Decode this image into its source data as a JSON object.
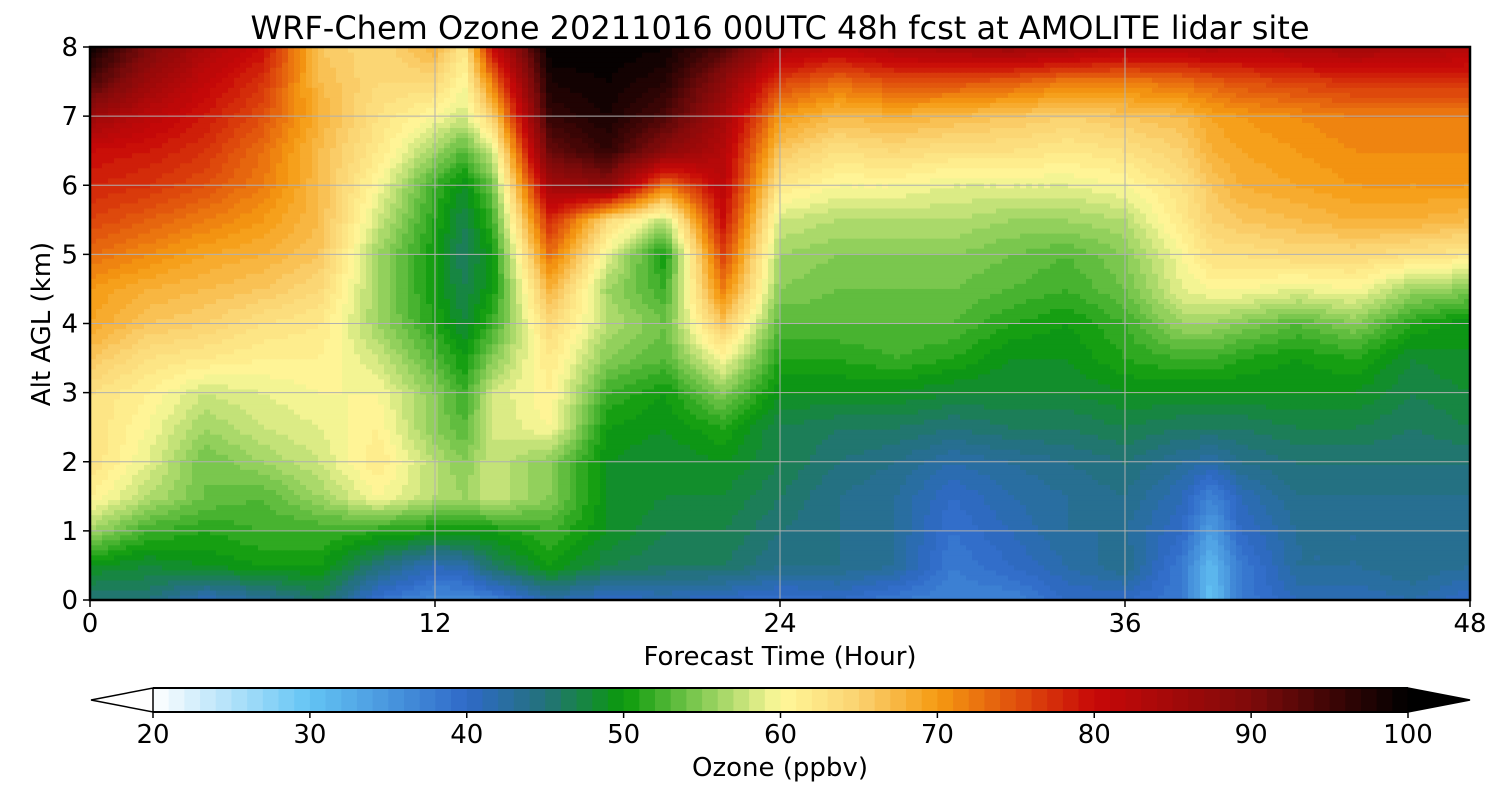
{
  "chart_data": {
    "type": "heatmap",
    "title": "WRF-Chem Ozone  20211016 00UTC 48h fcst at AMOLITE lidar site",
    "xlabel": "Forecast Time (Hour)",
    "ylabel": "Alt AGL (km)",
    "xlim": [
      0,
      48
    ],
    "ylim": [
      0,
      8
    ],
    "x_ticks": [
      0,
      12,
      24,
      36,
      48
    ],
    "y_ticks": [
      0,
      1,
      2,
      3,
      4,
      5,
      6,
      7,
      8
    ],
    "grid": true,
    "x": [
      0,
      2,
      4,
      6,
      8,
      10,
      12,
      13,
      14,
      16,
      18,
      20,
      22,
      24,
      26,
      28,
      30,
      32,
      34,
      36,
      38,
      39,
      40,
      42,
      44,
      46,
      48
    ],
    "y": [
      0,
      0.5,
      1,
      1.5,
      2,
      2.5,
      3,
      3.5,
      4,
      4.5,
      5,
      5.5,
      6,
      6.5,
      7,
      7.5,
      8
    ],
    "z_rows_by_altitude": [
      [
        45,
        45,
        41,
        43,
        46,
        39,
        36,
        36,
        37,
        42,
        40,
        41,
        40,
        39,
        40,
        38,
        37,
        37,
        40,
        40,
        38,
        30,
        38,
        41,
        41,
        42,
        40
      ],
      [
        49,
        48,
        49,
        50,
        50,
        45,
        41,
        42,
        46,
        50,
        47,
        46,
        46,
        44,
        44,
        43,
        38,
        40,
        42,
        44,
        38,
        31,
        38,
        43,
        43,
        44,
        43
      ],
      [
        56,
        52,
        51,
        52,
        52,
        51,
        50,
        50,
        50,
        52,
        49,
        47,
        47,
        45,
        44,
        43,
        39,
        41,
        43,
        43,
        40,
        34,
        40,
        43,
        43,
        44,
        43
      ],
      [
        61,
        57,
        54,
        53,
        56,
        60,
        57,
        56,
        58,
        55,
        49,
        48,
        48,
        46,
        44,
        43,
        40,
        42,
        43,
        44,
        41,
        37,
        41,
        44,
        44,
        44,
        44
      ],
      [
        63,
        59,
        54,
        56,
        58,
        62,
        57,
        55,
        58,
        55,
        49,
        48,
        49,
        47,
        45,
        44,
        42,
        43,
        44,
        45,
        43,
        42,
        44,
        45,
        45,
        45,
        45
      ],
      [
        63,
        60,
        56,
        58,
        59,
        61,
        55,
        53,
        58,
        60,
        50,
        49,
        51,
        47,
        46,
        46,
        45,
        46,
        46,
        47,
        46,
        46,
        46,
        47,
        47,
        46,
        47
      ],
      [
        63,
        61,
        58,
        59,
        60,
        60,
        55,
        52,
        58,
        61,
        52,
        50,
        55,
        49,
        49,
        49,
        48,
        48,
        48,
        49,
        49,
        49,
        49,
        49,
        49,
        47,
        48
      ],
      [
        66,
        63,
        62,
        61,
        61,
        58,
        53,
        50,
        55,
        62,
        55,
        53,
        60,
        51,
        51,
        52,
        51,
        49,
        49,
        51,
        52,
        52,
        51,
        50,
        51,
        48,
        49
      ],
      [
        69,
        66,
        65,
        63,
        62,
        56,
        51,
        48,
        52,
        64,
        57,
        54,
        66,
        53,
        53,
        53,
        53,
        51,
        50,
        52,
        56,
        56,
        55,
        53,
        55,
        51,
        49
      ],
      [
        70,
        68,
        67,
        66,
        64,
        56,
        50,
        47,
        50,
        68,
        56,
        52,
        72,
        55,
        54,
        54,
        54,
        53,
        52,
        54,
        59,
        60,
        60,
        59,
        60,
        56,
        55
      ],
      [
        73,
        71,
        69,
        68,
        66,
        56,
        50,
        46,
        50,
        73,
        59,
        50,
        76,
        56,
        55,
        55,
        55,
        54,
        53,
        55,
        60,
        63,
        63,
        64,
        64,
        63,
        62
      ],
      [
        76,
        74,
        72,
        70,
        67,
        58,
        51,
        47,
        52,
        78,
        64,
        57,
        80,
        58,
        57,
        57,
        57,
        56,
        56,
        57,
        62,
        65,
        66,
        67,
        68,
        68,
        67
      ],
      [
        78,
        77,
        75,
        72,
        67,
        60,
        52,
        49,
        54,
        85,
        88,
        72,
        82,
        62,
        60,
        60,
        59,
        59,
        59,
        60,
        63,
        66,
        68,
        69,
        70,
        70,
        70
      ],
      [
        80,
        79,
        77,
        73,
        67,
        62,
        56,
        53,
        58,
        92,
        96,
        88,
        83,
        66,
        63,
        64,
        63,
        63,
        62,
        63,
        65,
        68,
        69,
        70,
        71,
        71,
        71
      ],
      [
        86,
        82,
        79,
        75,
        68,
        63,
        60,
        58,
        65,
        96,
        98,
        94,
        85,
        70,
        67,
        68,
        67,
        66,
        65,
        66,
        67,
        69,
        70,
        71,
        72,
        72,
        72
      ],
      [
        94,
        86,
        81,
        77,
        67,
        64,
        64,
        60,
        72,
        98,
        99,
        97,
        88,
        76,
        73,
        75,
        75,
        74,
        72,
        72,
        73,
        74,
        75,
        76,
        77,
        77,
        77
      ],
      [
        99,
        90,
        84,
        80,
        66,
        64,
        68,
        62,
        80,
        100,
        100,
        99,
        94,
        84,
        82,
        84,
        85,
        86,
        85,
        83,
        83,
        84,
        83,
        84,
        85,
        84,
        83
      ]
    ],
    "colorbar": {
      "label": "Ozone  (ppbv)",
      "min": 20,
      "max": 100,
      "step": 1,
      "ticks": [
        20,
        30,
        40,
        50,
        60,
        70,
        80,
        90,
        100
      ],
      "extend": "both",
      "palette_stops": [
        {
          "v": 20,
          "c": "#ffffff"
        },
        {
          "v": 30,
          "c": "#63c4f4"
        },
        {
          "v": 40,
          "c": "#2f69c8"
        },
        {
          "v": 45,
          "c": "#23727a"
        },
        {
          "v": 50,
          "c": "#0a9a0a"
        },
        {
          "v": 55,
          "c": "#86cc55"
        },
        {
          "v": 60,
          "c": "#fff89a"
        },
        {
          "v": 65,
          "c": "#fbd270"
        },
        {
          "v": 70,
          "c": "#f59a12"
        },
        {
          "v": 75,
          "c": "#e0500c"
        },
        {
          "v": 80,
          "c": "#c80808"
        },
        {
          "v": 90,
          "c": "#7e0a0a"
        },
        {
          "v": 100,
          "c": "#000000"
        }
      ]
    }
  }
}
